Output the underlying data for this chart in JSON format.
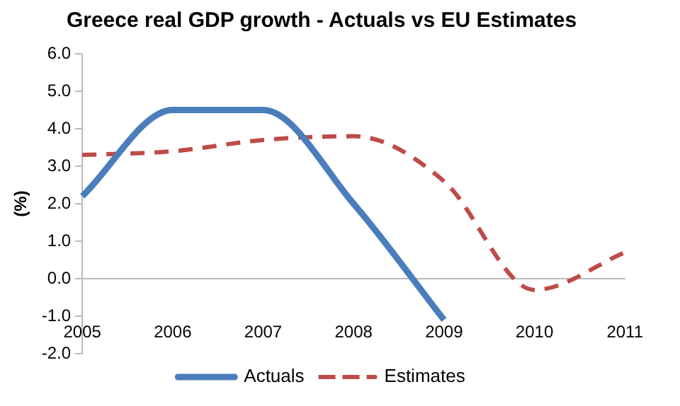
{
  "chart_data": {
    "type": "line",
    "title": "Greece real GDP growth - Actuals vs EU Estimates",
    "ylabel": "(%)",
    "categories": [
      "2005",
      "2006",
      "2007",
      "2008",
      "2009",
      "2010",
      "2011"
    ],
    "series": [
      {
        "name": "Actuals",
        "color": "#4a7ebb",
        "line_style": "solid",
        "values": [
          2.2,
          4.5,
          4.5,
          2.0,
          -1.1,
          null,
          null
        ]
      },
      {
        "name": "Estimates",
        "color": "#be4b48",
        "line_style": "dashed",
        "values": [
          3.3,
          3.4,
          3.7,
          3.8,
          2.6,
          -0.3,
          0.7
        ]
      }
    ],
    "ylim": [
      -2,
      6
    ],
    "yticks": [
      {
        "value": -2,
        "label": "-2.0"
      },
      {
        "value": -1,
        "label": "-1.0"
      },
      {
        "value": 0,
        "label": "0.0"
      },
      {
        "value": 1,
        "label": "1.0"
      },
      {
        "value": 2,
        "label": "2.0"
      },
      {
        "value": 3,
        "label": "3.0"
      },
      {
        "value": 4,
        "label": "4.0"
      },
      {
        "value": 5,
        "label": "5.0"
      },
      {
        "value": 6,
        "label": "6.0"
      }
    ],
    "grid": false,
    "legend": "bottom",
    "marker": "none"
  }
}
